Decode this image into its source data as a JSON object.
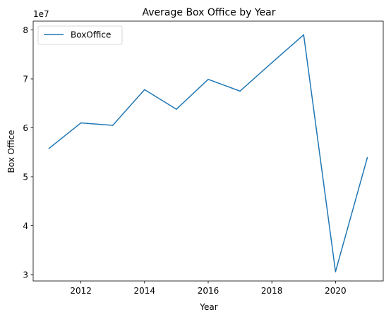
{
  "chart_data": {
    "type": "line",
    "title": "Average Box Office by Year",
    "xlabel": "Year",
    "ylabel": "Box Office",
    "y_offset_label": "1e7",
    "legend_position": "top-left",
    "grid": false,
    "xlim": [
      2010.5,
      2021.5
    ],
    "ylim": [
      2.87,
      8.18
    ],
    "x_ticks": [
      2012,
      2014,
      2016,
      2018,
      2020
    ],
    "y_ticks": [
      3,
      4,
      5,
      6,
      7,
      8
    ],
    "x": [
      2011,
      2012,
      2013,
      2014,
      2015,
      2016,
      2017,
      2018,
      2019,
      2020,
      2021
    ],
    "series": [
      {
        "name": "BoxOffice",
        "color": "#1f77b4",
        "values": [
          5.58,
          6.1,
          6.05,
          6.78,
          6.38,
          6.99,
          6.75,
          7.33,
          7.9,
          3.06,
          5.39
        ]
      }
    ]
  }
}
